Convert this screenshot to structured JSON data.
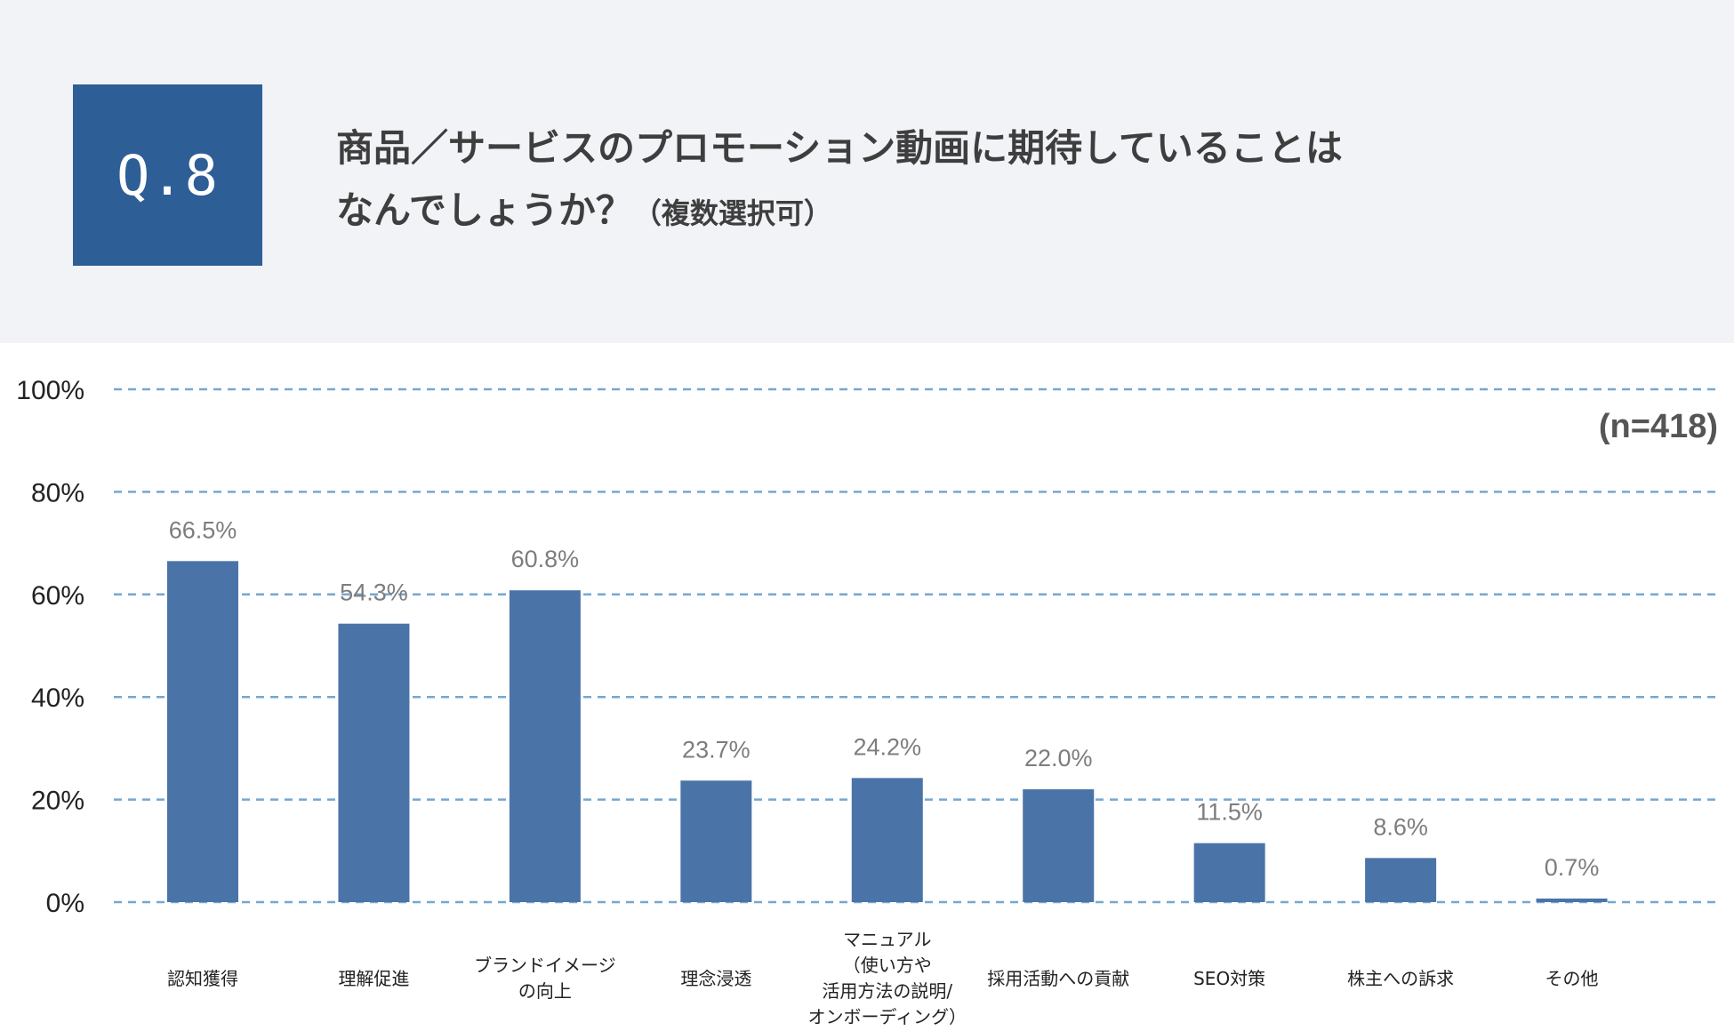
{
  "header": {
    "question_number": "Q.8",
    "title_line1": "商品／サービスのプロモーション動画に期待していることは",
    "title_line2": "なんでしょうか？",
    "title_note": "（複数選択可）"
  },
  "chart_data": {
    "type": "bar",
    "title": "商品／サービスのプロモーション動画に期待していることは なんでしょうか？（複数選択可）",
    "sample_size_label": "(n=418)",
    "categories": [
      "認知獲得",
      "理解促進",
      "ブランドイメージ\nの向上",
      "理念浸透",
      "マニュアル\n（使い方や\n活用方法の説明/\nオンボーディング）",
      "採用活動への貢献",
      "SEO対策",
      "株主への訴求",
      "その他"
    ],
    "values": [
      66.5,
      54.3,
      60.8,
      23.7,
      24.2,
      22.0,
      11.5,
      8.6,
      0.7
    ],
    "value_labels": [
      "66.5%",
      "54.3%",
      "60.8%",
      "23.7%",
      "24.2%",
      "22.0%",
      "11.5%",
      "8.6%",
      "0.7%"
    ],
    "yticks": [
      "0%",
      "20%",
      "40%",
      "60%",
      "80%",
      "100%"
    ],
    "ylim": [
      0,
      100
    ],
    "grid": "dashed-horizontal",
    "xlabel": "",
    "ylabel": "",
    "colors": {
      "bar": "#4a74a8",
      "grid": "#74a7d1",
      "value_label": "#7d7d7d",
      "badge": "#2d5e96",
      "header_bg": "#f1f3f7"
    }
  }
}
